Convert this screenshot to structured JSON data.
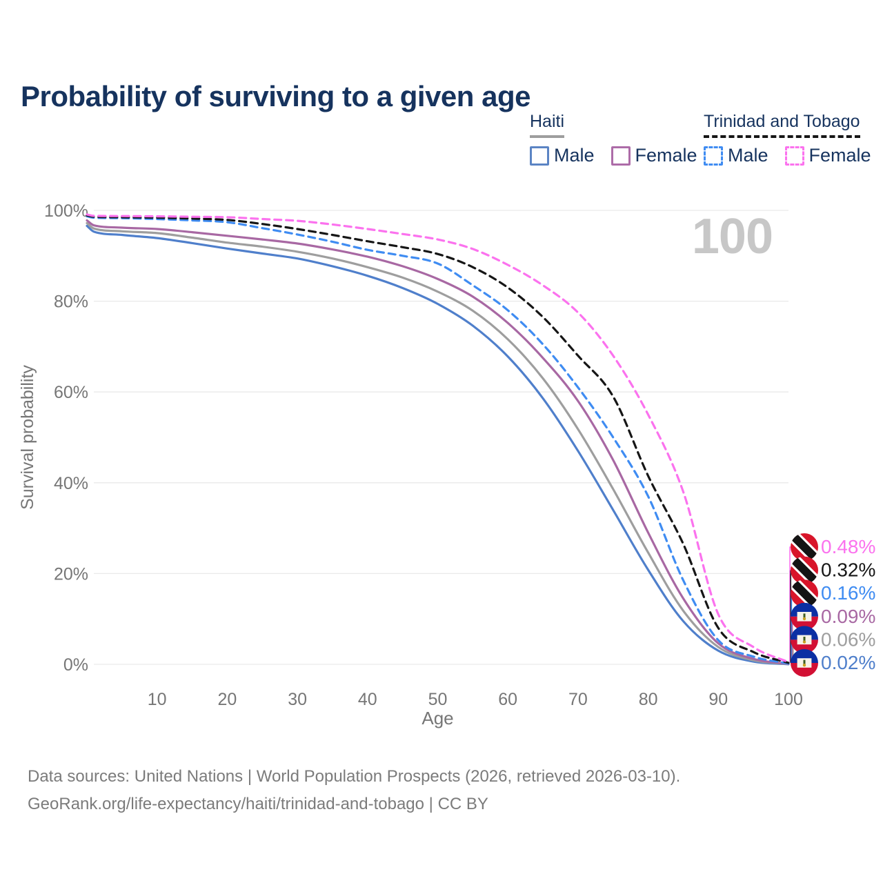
{
  "title": "Probability of surviving to a given age",
  "watermark_age": "100",
  "legend": {
    "haiti": {
      "title": "Haiti",
      "male": "Male",
      "female": "Female"
    },
    "trinidad_and_tobago": {
      "title": "Trinidad and Tobago",
      "male": "Male",
      "female": "Female"
    }
  },
  "footer": {
    "line1": "Data sources: United Nations | World Population Prospects (2026, retrieved 2026-03-10).",
    "line2": "GeoRank.org/life-expectancy/haiti/trinidad-and-tobago | CC BY"
  },
  "colors": {
    "title_text": "#16335e",
    "axis_text": "#767676",
    "gridline": "#e9e9e9",
    "watermark": "#c7c7c7",
    "haiti_male": "#4f7fcb",
    "haiti_both": "#9e9e9e",
    "haiti_female": "#a868a3",
    "tt_male": "#3f8cf2",
    "tt_both": "#161616",
    "tt_female": "#fb72ee"
  },
  "chart_data": {
    "type": "line",
    "title": "Probability of surviving to a given age",
    "xlabel": "Age",
    "ylabel": "Survival probability",
    "xlim": [
      0,
      100
    ],
    "ylim": [
      0,
      100
    ],
    "x_ticks": [
      10,
      20,
      30,
      40,
      50,
      60,
      70,
      80,
      90,
      100
    ],
    "y_ticks": [
      0,
      20,
      40,
      60,
      80,
      100
    ],
    "y_tick_suffix": "%",
    "grid": "horizontal-only",
    "legend_position": "top-right",
    "x": [
      0,
      1,
      5,
      10,
      15,
      20,
      25,
      30,
      35,
      40,
      45,
      50,
      55,
      60,
      65,
      70,
      75,
      80,
      85,
      90,
      95,
      100
    ],
    "series": [
      {
        "id": "tt-female",
        "name": "Trinidad and Tobago — Female",
        "country": "Trinidad and Tobago",
        "sex": "Female",
        "style": "dashed",
        "color": "#fb72ee",
        "flag": "tt",
        "end_label": "0.48%",
        "values": [
          99.1,
          98.8,
          98.75,
          98.7,
          98.6,
          98.5,
          98.1,
          97.7,
          96.9,
          95.9,
          94.8,
          93.6,
          91.5,
          88.0,
          83.5,
          77.5,
          68.0,
          55.0,
          38.0,
          11.0,
          3.8,
          0.48
        ]
      },
      {
        "id": "tt-both",
        "name": "Trinidad and Tobago — Both sexes",
        "country": "Trinidad and Tobago",
        "sex": "Both",
        "style": "dashed",
        "color": "#161616",
        "flag": "tt",
        "end_label": "0.32%",
        "values": [
          98.9,
          98.6,
          98.5,
          98.4,
          98.2,
          97.9,
          97.0,
          95.9,
          94.6,
          93.2,
          91.9,
          90.4,
          87.5,
          83.0,
          76.5,
          68.0,
          59.0,
          41.5,
          26.5,
          8.0,
          2.7,
          0.32
        ]
      },
      {
        "id": "tt-male",
        "name": "Trinidad and Tobago — Male",
        "country": "Trinidad and Tobago",
        "sex": "Male",
        "style": "dashed",
        "color": "#3f8cf2",
        "flag": "tt",
        "end_label": "0.16%",
        "values": [
          98.7,
          98.4,
          98.3,
          98.1,
          97.8,
          97.4,
          96.1,
          94.7,
          93.1,
          91.3,
          90.0,
          88.3,
          83.5,
          78.0,
          70.5,
          61.0,
          50.0,
          37.0,
          18.5,
          5.3,
          1.7,
          0.16
        ]
      },
      {
        "id": "haiti-female",
        "name": "Haiti — Female",
        "country": "Haiti",
        "sex": "Female",
        "style": "solid",
        "color": "#a868a3",
        "flag": "haiti",
        "end_label": "0.09%",
        "values": [
          97.8,
          96.7,
          96.2,
          95.9,
          95.2,
          94.4,
          93.6,
          92.7,
          91.4,
          89.8,
          87.7,
          84.9,
          81.0,
          75.2,
          67.5,
          58.0,
          45.0,
          29.0,
          14.5,
          4.6,
          1.2,
          0.09
        ]
      },
      {
        "id": "haiti-both",
        "name": "Haiti — Both sexes",
        "country": "Haiti",
        "sex": "Both",
        "style": "solid",
        "color": "#9e9e9e",
        "flag": "haiti",
        "end_label": "0.06%",
        "values": [
          97.2,
          96.0,
          95.4,
          95.0,
          94.0,
          92.9,
          92.0,
          90.9,
          89.4,
          87.5,
          85.2,
          82.1,
          77.9,
          71.6,
          63.0,
          51.8,
          38.6,
          24.6,
          11.8,
          3.8,
          0.9,
          0.06
        ]
      },
      {
        "id": "haiti-male",
        "name": "Haiti — Male",
        "country": "Haiti",
        "sex": "Male",
        "style": "solid",
        "color": "#4f7fcb",
        "flag": "haiti",
        "end_label": "0.02%",
        "values": [
          96.6,
          95.3,
          94.6,
          93.9,
          92.8,
          91.6,
          90.5,
          89.4,
          87.7,
          85.6,
          82.9,
          79.4,
          74.6,
          67.8,
          58.6,
          47.0,
          34.0,
          20.8,
          9.5,
          3.0,
          0.6,
          0.02
        ]
      }
    ]
  }
}
